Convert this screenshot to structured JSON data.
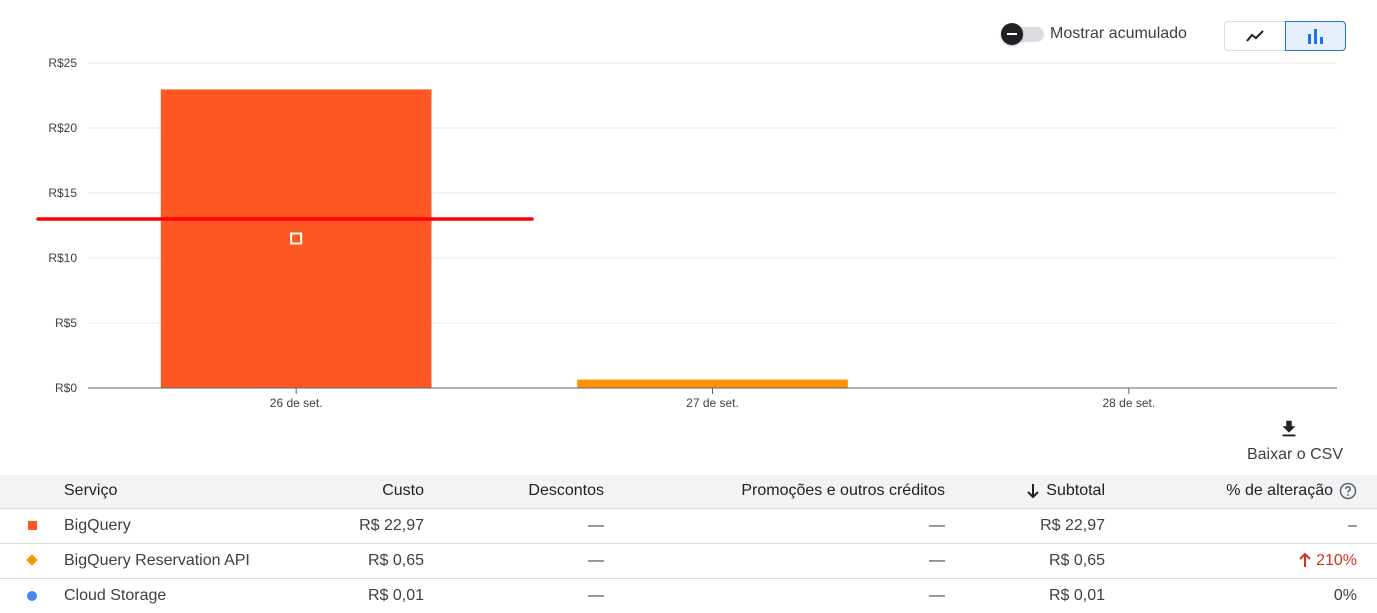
{
  "controls": {
    "cumulative_label": "Mostrar acumulado",
    "cumulative_on": false,
    "view_options": [
      {
        "icon": "line-chart-icon",
        "active": false
      },
      {
        "icon": "bar-chart-icon",
        "active": true
      }
    ],
    "download_icon": "download-icon",
    "download_label": "Baixar o CSV"
  },
  "chart_data": {
    "type": "bar",
    "categories": [
      "26 de set.",
      "27 de set.",
      "28 de set."
    ],
    "series": [
      {
        "name": "BigQuery",
        "color": "#ff5722",
        "values": [
          22.97,
          0,
          0
        ]
      },
      {
        "name": "BigQuery Reservation API",
        "color": "#ff9100",
        "values": [
          0,
          0.65,
          0
        ]
      }
    ],
    "ylim": [
      0,
      25
    ],
    "yticks": [
      0,
      5,
      10,
      15,
      20,
      25
    ],
    "ytick_labels": [
      "R$0",
      "R$5",
      "R$10",
      "R$15",
      "R$20",
      "R$25"
    ],
    "grid": true,
    "reference_line": {
      "value": 13,
      "color": "#ff0000"
    },
    "marker": {
      "category": "26 de set.",
      "value": 11.5
    }
  },
  "table": {
    "headers": {
      "service": "Serviço",
      "cost": "Custo",
      "discounts": "Descontos",
      "promotions": "Promoções e outros créditos",
      "subtotal": "Subtotal",
      "change": "% de alteração"
    },
    "rows": [
      {
        "indicator": "square",
        "color": "#ff5722",
        "service": "BigQuery",
        "cost": "R$ 22,97",
        "discounts": "—",
        "promotions": "—",
        "subtotal": "R$ 22,97",
        "change": "–",
        "change_trend": "none"
      },
      {
        "indicator": "diamond",
        "color": "#ff9100",
        "service": "BigQuery Reservation API",
        "cost": "R$ 0,65",
        "discounts": "—",
        "promotions": "—",
        "subtotal": "R$ 0,65",
        "change": "210%",
        "change_trend": "up"
      },
      {
        "indicator": "circle",
        "color": "#4285f4",
        "service": "Cloud Storage",
        "cost": "R$ 0,01",
        "discounts": "—",
        "promotions": "—",
        "subtotal": "R$ 0,01",
        "change": "0%",
        "change_trend": "none"
      }
    ]
  },
  "colors": {
    "accent": "#1a73e8",
    "increase": "#d93025"
  }
}
